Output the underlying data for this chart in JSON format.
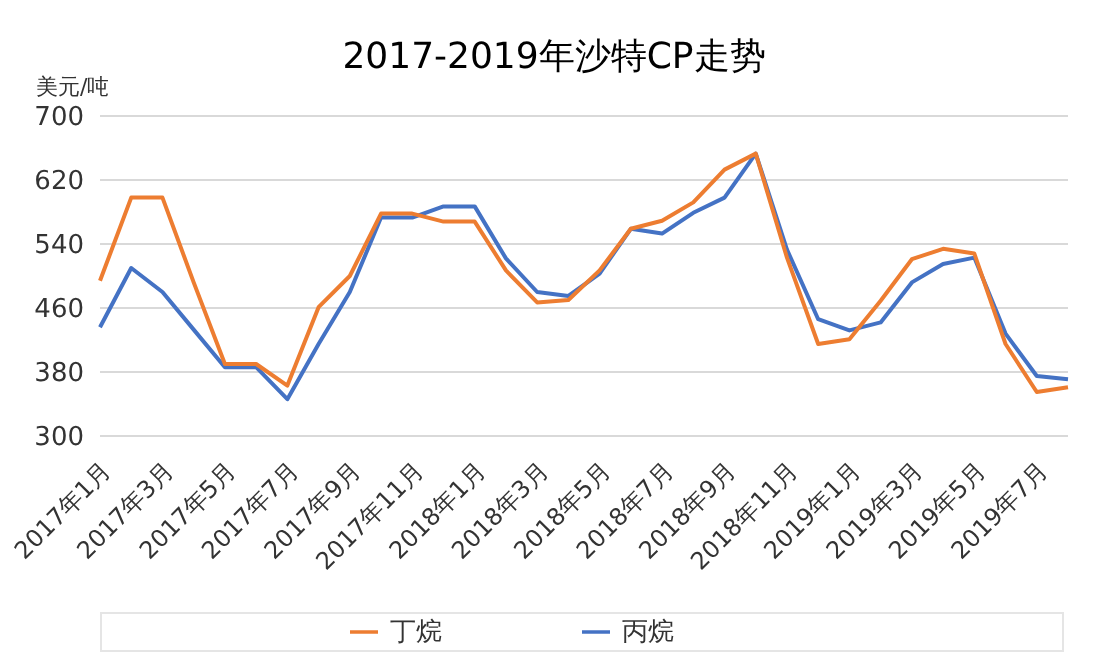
{
  "chart_data": {
    "type": "line",
    "title": "2017-2019年沙特CP走势",
    "ylabel": "美元/吨",
    "categories": [
      "2017年1月",
      null,
      "2017年3月",
      null,
      "2017年5月",
      null,
      "2017年7月",
      null,
      "2017年9月",
      null,
      "2017年11月",
      null,
      "2018年1月",
      null,
      "2018年3月",
      null,
      "2018年5月",
      null,
      "2018年7月",
      null,
      "2018年9月",
      null,
      "2018年11月",
      null,
      "2019年1月",
      null,
      "2019年3月",
      null,
      "2019年5月",
      null,
      "2019年7月",
      null
    ],
    "series": [
      {
        "name": "丙烷",
        "color": "#4472c4",
        "values": [
          436,
          510,
          480,
          433,
          386,
          386,
          346,
          415,
          480,
          573,
          573,
          587,
          587,
          522,
          480,
          475,
          503,
          559,
          553,
          579,
          598,
          653,
          533,
          446,
          432,
          442,
          492,
          515,
          523,
          428,
          375,
          371
        ]
      },
      {
        "name": "丁烷",
        "color": "#ed7d31",
        "values": [
          494,
          598,
          598,
          492,
          390,
          390,
          363,
          461,
          500,
          578,
          578,
          568,
          568,
          507,
          467,
          470,
          507,
          559,
          569,
          592,
          633,
          653,
          523,
          415,
          421,
          469,
          521,
          534,
          528,
          415,
          355,
          361
        ]
      }
    ],
    "ylim": [
      300,
      700
    ],
    "yticks": [
      300,
      380,
      460,
      540,
      620,
      700
    ],
    "grid": "y",
    "legend": "bottom",
    "marker": "none",
    "line_style": "solid"
  }
}
